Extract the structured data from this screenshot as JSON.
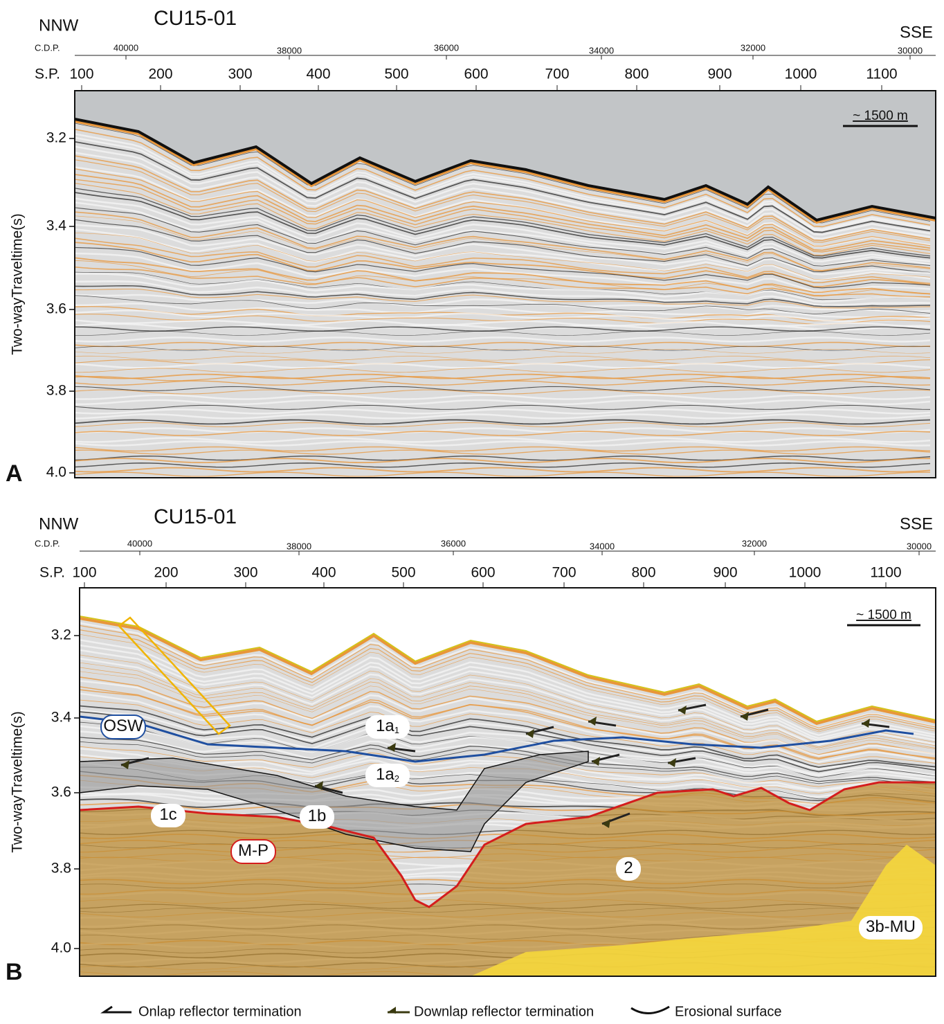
{
  "panels": [
    {
      "letter": "A",
      "title": "CU15-01",
      "left": "NNW",
      "right": "SSE",
      "cdp_label": "C.D.P.",
      "cdp_ticks": [
        "40000",
        "38000",
        "36000",
        "34000",
        "32000",
        "30000"
      ],
      "sp_label": "S.P.",
      "sp_ticks": [
        "100",
        "200",
        "300",
        "400",
        "500",
        "600",
        "700",
        "800",
        "900",
        "1000",
        "1100"
      ],
      "y_label": "Two-wayTraveltime(s)",
      "y_ticks": [
        "3.2",
        "3.4",
        "3.6",
        "3.8",
        "4.0"
      ],
      "scale_bar": "~ 1500 m"
    },
    {
      "letter": "B",
      "title": "CU15-01",
      "left": "NNW",
      "right": "SSE",
      "cdp_label": "C.D.P.",
      "cdp_ticks": [
        "40000",
        "38000",
        "36000",
        "34000",
        "32000",
        "30000"
      ],
      "sp_label": "S.P.",
      "sp_ticks": [
        "100",
        "200",
        "300",
        "400",
        "500",
        "600",
        "700",
        "800",
        "900",
        "1000",
        "1100"
      ],
      "y_label": "Two-wayTraveltime(s)",
      "y_ticks": [
        "3.2",
        "3.4",
        "3.6",
        "3.8",
        "4.0"
      ],
      "scale_bar": "~ 1500 m",
      "units": [
        {
          "text": "OSW"
        },
        {
          "text": "1a",
          "sub": "1"
        },
        {
          "text": "1a",
          "sub": "2"
        },
        {
          "text": "1c"
        },
        {
          "text": "1b"
        },
        {
          "text": "M-P"
        },
        {
          "text": "2"
        },
        {
          "text": "3b-MU"
        }
      ]
    }
  ],
  "legend": [
    "Onlap reflector termination",
    "Downlap reflector termination",
    "Erosional surface"
  ]
}
